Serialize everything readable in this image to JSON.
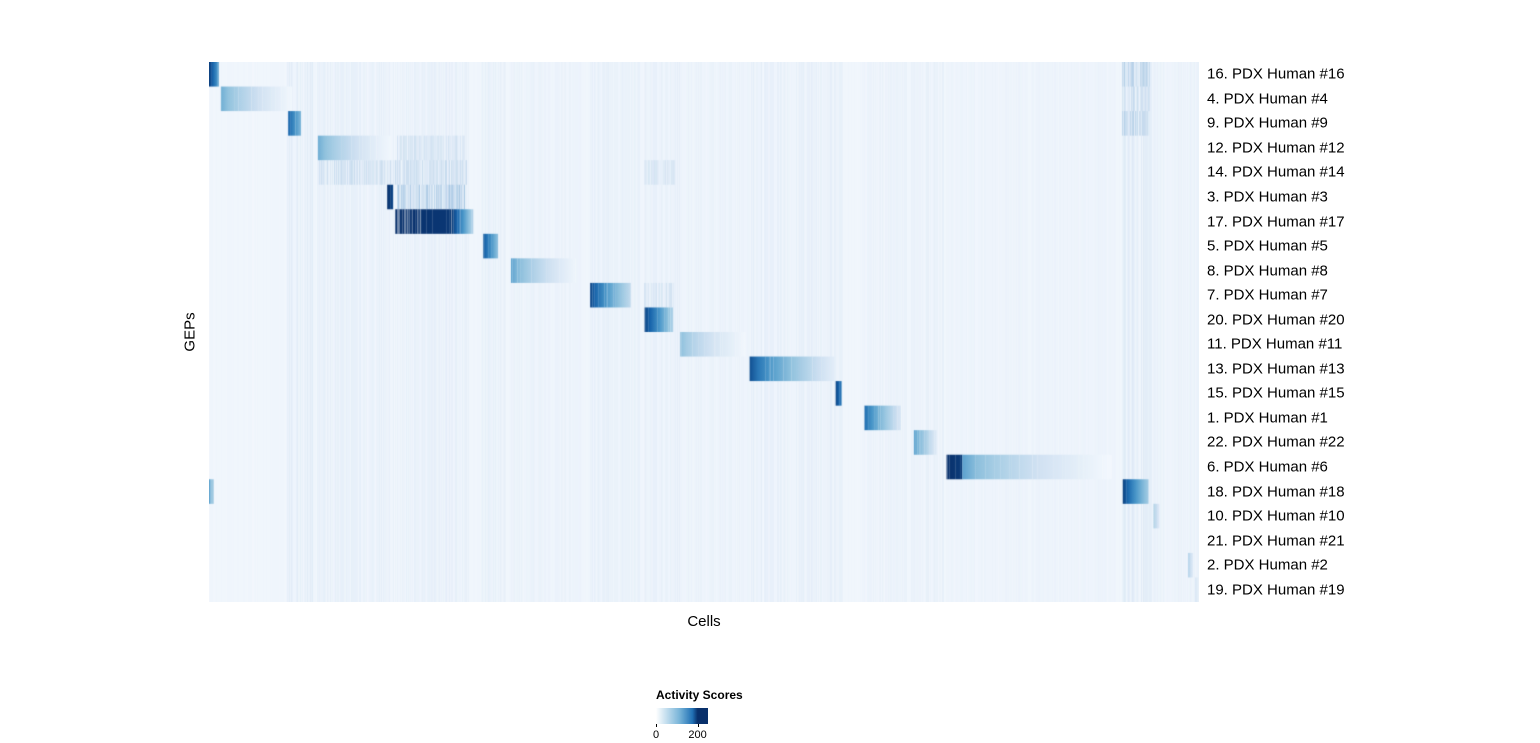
{
  "chart_data": {
    "type": "heatmap",
    "title": "",
    "xlabel": "Cells",
    "ylabel": "GEPs",
    "rows": [
      "16. PDX Human #16",
      "4. PDX Human #4",
      "9. PDX Human #9",
      "12. PDX Human #12",
      "14. PDX Human #14",
      "3. PDX Human #3",
      "17. PDX Human #17",
      "5. PDX Human #5",
      "8. PDX Human #8",
      "7. PDX Human #7",
      "20. PDX Human #20",
      "11. PDX Human #11",
      "13. PDX Human #13",
      "15. PDX Human #15",
      "1. PDX Human #1",
      "22. PDX Human #22",
      "6. PDX Human #6",
      "18. PDX Human #18",
      "10. PDX Human #10",
      "21. PDX Human #21",
      "2. PDX Human #2",
      "19. PDX Human #19"
    ],
    "value_range": [
      0,
      200
    ],
    "background": "#f2f7fd",
    "colormap": [
      {
        "p": 0.0,
        "c": "#f7fbff"
      },
      {
        "p": 0.2,
        "c": "#d0e1f2"
      },
      {
        "p": 0.4,
        "c": "#94c4df"
      },
      {
        "p": 0.6,
        "c": "#4a97c9"
      },
      {
        "p": 0.8,
        "c": "#1764ab"
      },
      {
        "p": 1.0,
        "c": "#08306b"
      }
    ],
    "legend": {
      "title": "Activity Scores",
      "ticks": [
        {
          "pos": 0.0,
          "label": "0"
        },
        {
          "pos": 0.8,
          "label": "200"
        }
      ],
      "gradient_stops": [
        {
          "pos": 0.0,
          "color": "#ffffff"
        },
        {
          "pos": 0.45,
          "color": "#79b5d9"
        },
        {
          "pos": 0.7,
          "color": "#2171b5"
        },
        {
          "pos": 0.8,
          "color": "#08306b"
        },
        {
          "pos": 1.0,
          "color": "#08306b"
        }
      ]
    },
    "blocks": [
      {
        "row": 0,
        "x0": 0.0,
        "x1": 0.01,
        "i0": 0.95,
        "i1": 0.55
      },
      {
        "row": 1,
        "x0": 0.012,
        "x1": 0.084,
        "i0": 0.5,
        "i1": 0.03,
        "g": 0.7
      },
      {
        "row": 2,
        "x0": 0.08,
        "x1": 0.093,
        "i0": 0.8,
        "i1": 0.45
      },
      {
        "row": 3,
        "x0": 0.11,
        "x1": 0.184,
        "i0": 0.5,
        "i1": 0.03,
        "g": 0.7
      },
      {
        "row": 5,
        "x0": 0.18,
        "x1": 0.186,
        "i0": 1.0,
        "i1": 0.9
      },
      {
        "row": 6,
        "x0": 0.188,
        "x1": 0.245,
        "i0": 1.0,
        "i1": 0.97
      },
      {
        "row": 6,
        "x0": 0.245,
        "x1": 0.267,
        "i0": 0.97,
        "i1": 0.28
      },
      {
        "row": 7,
        "x0": 0.277,
        "x1": 0.292,
        "i0": 0.85,
        "i1": 0.4
      },
      {
        "row": 8,
        "x0": 0.305,
        "x1": 0.371,
        "i0": 0.55,
        "i1": 0.04,
        "g": 0.7
      },
      {
        "row": 9,
        "x0": 0.385,
        "x1": 0.426,
        "i0": 0.92,
        "i1": 0.25,
        "g": 0.8
      },
      {
        "row": 10,
        "x0": 0.44,
        "x1": 0.469,
        "i0": 0.92,
        "i1": 0.3
      },
      {
        "row": 11,
        "x0": 0.476,
        "x1": 0.542,
        "i0": 0.42,
        "i1": 0.03,
        "g": 0.7
      },
      {
        "row": 12,
        "x0": 0.546,
        "x1": 0.633,
        "i0": 0.88,
        "i1": 0.1,
        "g": 0.7
      },
      {
        "row": 13,
        "x0": 0.633,
        "x1": 0.639,
        "i0": 0.92,
        "i1": 0.7
      },
      {
        "row": 14,
        "x0": 0.662,
        "x1": 0.699,
        "i0": 0.78,
        "i1": 0.15,
        "g": 0.8
      },
      {
        "row": 15,
        "x0": 0.712,
        "x1": 0.735,
        "i0": 0.55,
        "i1": 0.12
      },
      {
        "row": 16,
        "x0": 0.745,
        "x1": 0.761,
        "i0": 1.0,
        "i1": 0.95
      },
      {
        "row": 16,
        "x0": 0.761,
        "x1": 0.912,
        "i0": 0.55,
        "i1": 0.02,
        "g": 0.6
      },
      {
        "row": 17,
        "x0": 0.0,
        "x1": 0.005,
        "i0": 0.55,
        "i1": 0.3
      },
      {
        "row": 17,
        "x0": 0.923,
        "x1": 0.949,
        "i0": 0.95,
        "i1": 0.35,
        "g": 0.8
      },
      {
        "row": 18,
        "x0": 0.954,
        "x1": 0.96,
        "i0": 0.35,
        "i1": 0.12
      },
      {
        "row": 20,
        "x0": 0.989,
        "x1": 0.994,
        "i0": 0.3,
        "i1": 0.12
      },
      {
        "row": 21,
        "x0": 0.996,
        "x1": 1.0,
        "i0": 0.15,
        "i1": 0.08
      }
    ],
    "noise_bands": [
      {
        "x0": 0.0,
        "x1": 1.0,
        "alpha": 0.015
      },
      {
        "x0": 0.078,
        "x1": 0.105,
        "alpha": 0.07
      },
      {
        "x0": 0.11,
        "x1": 0.186,
        "alpha": 0.05
      },
      {
        "x0": 0.188,
        "x1": 0.262,
        "alpha": 0.05
      },
      {
        "x0": 0.275,
        "x1": 0.3,
        "alpha": 0.04
      },
      {
        "x0": 0.305,
        "x1": 0.375,
        "alpha": 0.03
      },
      {
        "x0": 0.385,
        "x1": 0.435,
        "alpha": 0.04
      },
      {
        "x0": 0.44,
        "x1": 0.475,
        "alpha": 0.05
      },
      {
        "x0": 0.476,
        "x1": 0.545,
        "alpha": 0.03
      },
      {
        "x0": 0.546,
        "x1": 0.64,
        "alpha": 0.05
      },
      {
        "x0": 0.66,
        "x1": 0.705,
        "alpha": 0.03
      },
      {
        "x0": 0.71,
        "x1": 0.742,
        "alpha": 0.04
      },
      {
        "x0": 0.745,
        "x1": 0.915,
        "alpha": 0.02
      },
      {
        "x0": 0.923,
        "x1": 0.952,
        "alpha": 0.08
      },
      {
        "x0": 0.954,
        "x1": 1.0,
        "alpha": 0.03
      },
      {
        "row": 3,
        "x0": 0.19,
        "x1": 0.258,
        "alpha": 0.12
      },
      {
        "row": 4,
        "x0": 0.11,
        "x1": 0.26,
        "alpha": 0.16
      },
      {
        "row": 5,
        "x0": 0.19,
        "x1": 0.258,
        "alpha": 0.32
      },
      {
        "row": 4,
        "x0": 0.44,
        "x1": 0.47,
        "alpha": 0.1
      },
      {
        "row": 9,
        "x0": 0.44,
        "x1": 0.47,
        "alpha": 0.12
      },
      {
        "row": 0,
        "x0": 0.923,
        "x1": 0.95,
        "alpha": 0.22
      },
      {
        "row": 1,
        "x0": 0.923,
        "x1": 0.95,
        "alpha": 0.15
      },
      {
        "row": 2,
        "x0": 0.923,
        "x1": 0.95,
        "alpha": 0.22
      },
      {
        "row": 6,
        "x0": 0.19,
        "x1": 0.215,
        "alpha": 0.45,
        "white": true
      }
    ]
  }
}
